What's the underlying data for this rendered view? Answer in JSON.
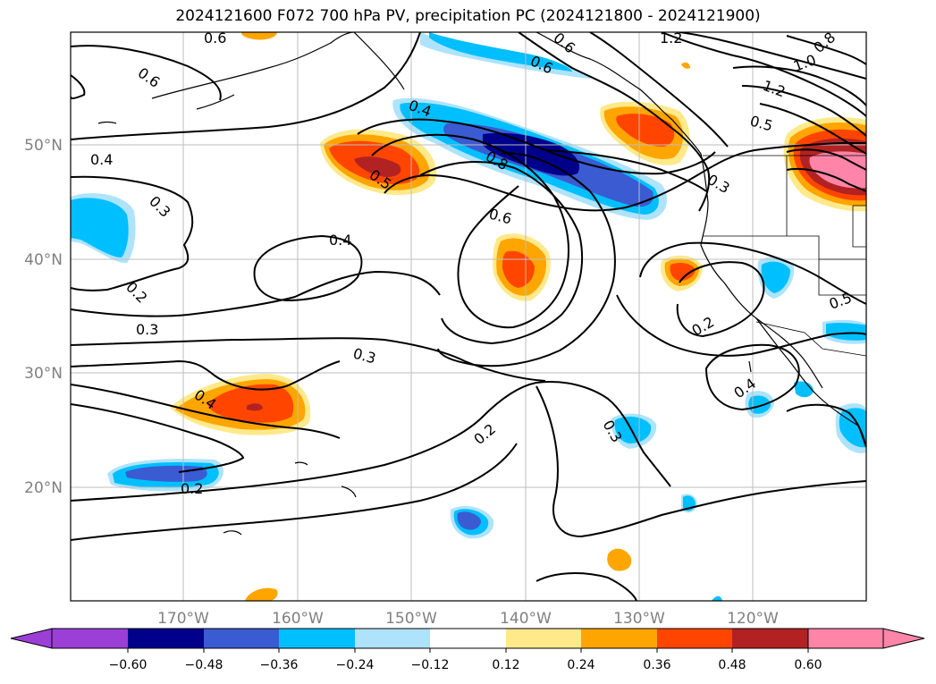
{
  "title": "2024121600 F072 700 hPa PV, precipitation PC (2024121800 - 2024121900)",
  "lon_labels": [
    "170°W",
    "160°W",
    "150°W",
    "140°W",
    "130°W",
    "120°W"
  ],
  "lat_labels": [
    "50°N",
    "40°N",
    "30°N",
    "20°N"
  ],
  "colorbar": {
    "ticks": [
      "−0.60",
      "−0.48",
      "−0.36",
      "−0.24",
      "−0.12",
      "0.12",
      "0.24",
      "0.36",
      "0.48",
      "0.60"
    ],
    "colors": [
      "#9b3fd6",
      "#00008b",
      "#3a5bd1",
      "#00bfff",
      "#aee3fb",
      "#ffffff",
      "#ffe98a",
      "#ffa500",
      "#ff4500",
      "#b22222",
      "#ff85a8"
    ]
  },
  "contour_labels": [
    "0.6",
    "0.6",
    "0.4",
    "0.3",
    "0.2",
    "0.3",
    "0.4",
    "0.5",
    "0.4",
    "0.6",
    "0.3",
    "0.2",
    "0.4",
    "0.2",
    "0.6",
    "1.2",
    "1.2",
    "1.0",
    "0.8",
    "0.3",
    "0.2",
    "0.4",
    "0.5",
    "0.8",
    "0.3",
    "0.6",
    "0.5"
  ],
  "legend": {
    "fields": [
      "700 hPa PV",
      "precipitation PC"
    ]
  }
}
